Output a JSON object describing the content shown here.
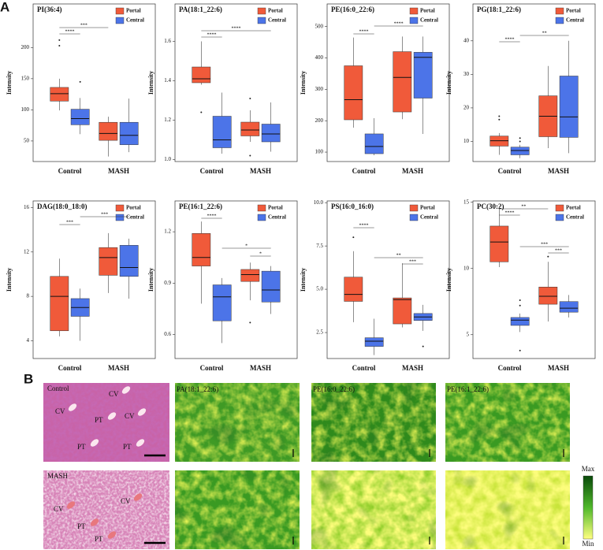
{
  "panel_labels": [
    "A",
    "B"
  ],
  "chart_data": [
    {
      "type": "box",
      "title": "PI(36:4)",
      "ylabel": "Intensity",
      "categories": [
        "Control",
        "MASH"
      ],
      "ylim": [
        17,
        270
      ],
      "yticks": [
        50,
        100,
        150,
        200
      ],
      "series": [
        {
          "name": "Portal",
          "color": "#f05a3a",
          "min": [
            99,
            25
          ],
          "q1": [
            114,
            51
          ],
          "median": [
            126,
            62
          ],
          "q3": [
            136,
            80
          ],
          "max": [
            150,
            89
          ],
          "outliers": [
            [
              212,
              203
            ],
            []
          ]
        },
        {
          "name": "Central",
          "color": "#4c74e8",
          "min": [
            61,
            32
          ],
          "q1": [
            76,
            44
          ],
          "median": [
            86,
            59
          ],
          "q3": [
            101,
            80
          ],
          "max": [
            119,
            118
          ],
          "outliers": [
            [
              145
            ],
            []
          ]
        }
      ],
      "annotations": [
        "***",
        "****"
      ]
    },
    {
      "type": "box",
      "title": "PA(18:1_22:6)",
      "ylabel": "Intensity",
      "categories": [
        "Control",
        "MASH"
      ],
      "ylim": [
        0.99,
        1.79
      ],
      "yticks": [
        {
          "value": 1,
          "label": "1.0"
        },
        1.2,
        1.4,
        1.6
      ],
      "series": [
        {
          "name": "Portal",
          "color": "#f05a3a",
          "min": [
            1.38,
            1.09
          ],
          "q1": [
            1.39,
            1.12
          ],
          "median": [
            1.41,
            1.15
          ],
          "q3": [
            1.47,
            1.19
          ],
          "max": [
            1.6,
            1.25
          ],
          "outliers": [
            [
              1.24
            ],
            [
              1.31,
              1.02
            ]
          ]
        },
        {
          "name": "Central",
          "color": "#4c74e8",
          "min": [
            1.03,
            1.04
          ],
          "q1": [
            1.06,
            1.09
          ],
          "median": [
            1.1,
            1.13
          ],
          "q3": [
            1.22,
            1.18
          ],
          "max": [
            1.34,
            1.29
          ],
          "outliers": [
            [],
            []
          ]
        }
      ],
      "annotations": [
        "****",
        "****"
      ]
    },
    {
      "type": "box",
      "title": "PE(16:0_22:6)",
      "ylabel": "Intensity",
      "categories": [
        "Control",
        "MASH"
      ],
      "ylim": [
        70,
        572
      ],
      "yticks": [
        100,
        200,
        300,
        400,
        500
      ],
      "series": [
        {
          "name": "Portal",
          "color": "#f05a3a",
          "min": [
            178,
            205
          ],
          "q1": [
            203,
            228
          ],
          "median": [
            267,
            338
          ],
          "q3": [
            375,
            420
          ],
          "max": [
            465,
            468
          ],
          "outliers": [
            [],
            []
          ]
        },
        {
          "name": "Central",
          "color": "#4c74e8",
          "min": [
            90,
            158
          ],
          "q1": [
            95,
            272
          ],
          "median": [
            118,
            402
          ],
          "q3": [
            158,
            418
          ],
          "max": [
            208,
            468
          ],
          "outliers": [
            [],
            []
          ]
        }
      ],
      "annotations": [
        "****",
        "****"
      ]
    },
    {
      "type": "box",
      "title": "PG(18:1_22:6)",
      "ylabel": "Intensity",
      "categories": [
        "Control",
        "MASH"
      ],
      "ylim": [
        4,
        51
      ],
      "yticks": [
        10,
        20,
        30,
        40
      ],
      "series": [
        {
          "name": "Portal",
          "color": "#f05a3a",
          "min": [
            6,
            8
          ],
          "q1": [
            8.6,
            11.4
          ],
          "median": [
            10.2,
            17.5
          ],
          "q3": [
            11.6,
            23.6
          ],
          "max": [
            12.5,
            32.5
          ],
          "outliers": [
            [
              17.5,
              16.5
            ],
            []
          ]
        },
        {
          "name": "Central",
          "color": "#4c74e8",
          "min": [
            5,
            6.5
          ],
          "q1": [
            6,
            11.2
          ],
          "median": [
            7.3,
            17.3
          ],
          "q3": [
            8.3,
            29.5
          ],
          "max": [
            9,
            40
          ],
          "outliers": [
            [
              11,
              10
            ],
            []
          ]
        }
      ],
      "annotations": [
        "****",
        "**"
      ]
    },
    {
      "type": "box",
      "title": "DAG(18:0_18:0)",
      "ylabel": "Intensity",
      "categories": [
        "Control",
        "MASH"
      ],
      "ylim": [
        2.4,
        16.6
      ],
      "yticks": [
        4,
        8,
        12,
        16
      ],
      "series": [
        {
          "name": "Portal",
          "color": "#f05a3a",
          "min": [
            4.4,
            8.3
          ],
          "q1": [
            4.9,
            9.9
          ],
          "median": [
            8,
            11.5
          ],
          "q3": [
            9.8,
            12.4
          ],
          "max": [
            11.4,
            13.7
          ],
          "outliers": [
            [],
            []
          ]
        },
        {
          "name": "Central",
          "color": "#4c74e8",
          "min": [
            4,
            7.8
          ],
          "q1": [
            6.2,
            9.8
          ],
          "median": [
            7,
            10.6
          ],
          "q3": [
            7.8,
            12.6
          ],
          "max": [
            8.7,
            13.2
          ],
          "outliers": [
            [],
            []
          ]
        }
      ],
      "annotations": [
        "***",
        "***"
      ]
    },
    {
      "type": "box",
      "title": "PE(16:1_22:6)",
      "ylabel": "Intensity",
      "categories": [
        "Control",
        "MASH"
      ],
      "ylim": [
        0.46,
        1.38
      ],
      "yticks": [
        0.6,
        0.9,
        1.2
      ],
      "series": [
        {
          "name": "Portal",
          "color": "#f05a3a",
          "min": [
            0.78,
            0.8
          ],
          "q1": [
            1,
            0.91
          ],
          "median": [
            1.05,
            0.95
          ],
          "q3": [
            1.19,
            0.98
          ],
          "max": [
            1.26,
            1.02
          ],
          "outliers": [
            [],
            [
              0.67
            ]
          ]
        },
        {
          "name": "Central",
          "color": "#4c74e8",
          "min": [
            0.55,
            0.72
          ],
          "q1": [
            0.68,
            0.79
          ],
          "median": [
            0.82,
            0.86
          ],
          "q3": [
            0.89,
            0.97
          ],
          "max": [
            0.93,
            1
          ],
          "outliers": [
            [],
            []
          ]
        }
      ],
      "annotations": [
        "****",
        "*",
        "*"
      ]
    },
    {
      "type": "box",
      "title": "PS(16:0_16:0)",
      "ylabel": "Intensity",
      "categories": [
        "Control",
        "MASH"
      ],
      "ylim": [
        1,
        10.1
      ],
      "yticks": [
        2.5,
        {
          "value": 5,
          "label": "5.0"
        },
        7.5,
        {
          "value": 10,
          "label": "10.0"
        }
      ],
      "series": [
        {
          "name": "Portal",
          "color": "#f05a3a",
          "min": [
            3.1,
            2.8
          ],
          "q1": [
            4.3,
            3
          ],
          "median": [
            4.7,
            4.4
          ],
          "q3": [
            5.7,
            4.5
          ],
          "max": [
            7.2,
            6.5
          ],
          "outliers": [
            [
              8
            ],
            []
          ]
        },
        {
          "name": "Central",
          "color": "#4c74e8",
          "min": [
            1.2,
            2.6
          ],
          "q1": [
            1.7,
            3.2
          ],
          "median": [
            2,
            3.4
          ],
          "q3": [
            2.2,
            3.6
          ],
          "max": [
            3.3,
            4.1
          ],
          "outliers": [
            [],
            [
              1.7
            ]
          ]
        }
      ],
      "annotations": [
        "****",
        "**",
        "***"
      ]
    },
    {
      "type": "box",
      "title": "PC(30:2)",
      "ylabel": "Intensity",
      "categories": [
        "Control",
        "MASH"
      ],
      "ylim": [
        3.2,
        15.1
      ],
      "yticks": [
        5,
        10,
        15
      ],
      "series": [
        {
          "name": "Portal",
          "color": "#f05a3a",
          "min": [
            10.1,
            6
          ],
          "q1": [
            10.5,
            7.3
          ],
          "median": [
            12,
            7.9
          ],
          "q3": [
            13.2,
            8.6
          ],
          "max": [
            14.7,
            10.5
          ],
          "outliers": [
            [],
            [
              10.9
            ]
          ]
        },
        {
          "name": "Central",
          "color": "#4c74e8",
          "min": [
            5.2,
            6.3
          ],
          "q1": [
            5.7,
            6.7
          ],
          "median": [
            6.1,
            7
          ],
          "q3": [
            6.3,
            7.5
          ],
          "max": [
            6.6,
            8
          ],
          "outliers": [
            [
              7.6,
              7.2,
              3.8
            ],
            []
          ]
        }
      ],
      "annotations": [
        "****",
        "**",
        "***",
        "***"
      ]
    }
  ],
  "imaging": {
    "rows": [
      "Control",
      "MASH"
    ],
    "columns": [
      "PA(18:1_22:6)",
      "PE(16:0_22:6)",
      "PE(16:1_22:6)"
    ],
    "he_labels": [
      [
        "CV",
        "CV",
        "PT",
        "CV",
        "PT",
        "PT"
      ],
      [
        "CV",
        "CV",
        "PT",
        "PT"
      ]
    ],
    "colorbar": [
      "Max",
      "Min"
    ]
  }
}
